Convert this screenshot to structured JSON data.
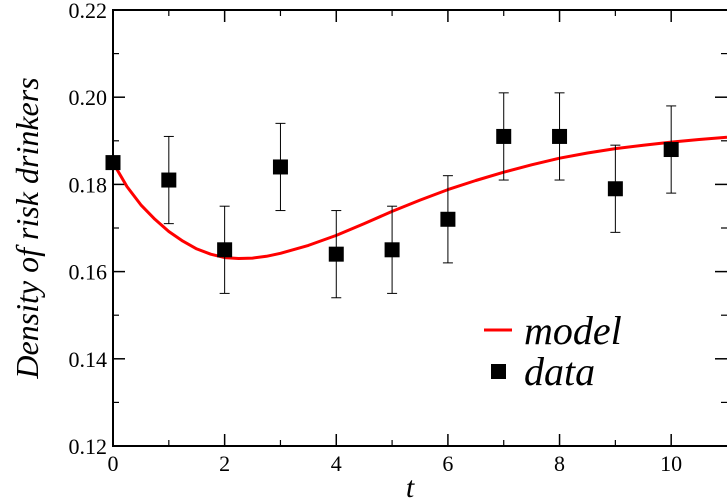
{
  "chart_data": {
    "type": "line",
    "title": "",
    "xlabel": "t",
    "ylabel": "Density of risk drinkers",
    "xlim": [
      0,
      11
    ],
    "ylim": [
      0.12,
      0.22
    ],
    "x_major_ticks": [
      0,
      2,
      4,
      6,
      8,
      10
    ],
    "x_tick_labels": [
      "0",
      "2",
      "4",
      "6",
      "8",
      "10"
    ],
    "y_major_ticks": [
      0.12,
      0.14,
      0.16,
      0.18,
      0.2,
      0.22
    ],
    "y_tick_labels": [
      "0.12",
      "0.14",
      "0.16",
      "0.18",
      "0.20",
      "0.22"
    ],
    "grid": false,
    "legend": {
      "placement": "bottom-right",
      "entries": [
        "model",
        "data"
      ]
    },
    "series": [
      {
        "name": "model",
        "kind": "line",
        "color": "#ff0000",
        "x": [
          0,
          0.25,
          0.5,
          0.75,
          1.0,
          1.25,
          1.5,
          1.75,
          2.0,
          2.25,
          2.5,
          2.75,
          3.0,
          3.5,
          4.0,
          4.5,
          5.0,
          5.5,
          6.0,
          6.5,
          7.0,
          7.5,
          8.0,
          8.5,
          9.0,
          9.5,
          10.0,
          10.5,
          11.0
        ],
        "y": [
          0.185,
          0.1795,
          0.1753,
          0.172,
          0.1692,
          0.167,
          0.1652,
          0.164,
          0.1632,
          0.163,
          0.1631,
          0.1635,
          0.1642,
          0.166,
          0.1683,
          0.171,
          0.1738,
          0.1764,
          0.1788,
          0.1809,
          0.1828,
          0.1845,
          0.186,
          0.1872,
          0.1882,
          0.189,
          0.1897,
          0.1903,
          0.1908
        ]
      },
      {
        "name": "data",
        "kind": "scatter",
        "color": "#000000",
        "marker": "square",
        "x": [
          0,
          1,
          2,
          3,
          4,
          5,
          6,
          7,
          8,
          9,
          10
        ],
        "y": [
          0.185,
          0.181,
          0.165,
          0.184,
          0.164,
          0.165,
          0.172,
          0.191,
          0.191,
          0.179,
          0.188
        ],
        "error": [
          0,
          0.01,
          0.01,
          0.01,
          0.01,
          0.01,
          0.01,
          0.01,
          0.01,
          0.01,
          0.01
        ]
      }
    ]
  }
}
